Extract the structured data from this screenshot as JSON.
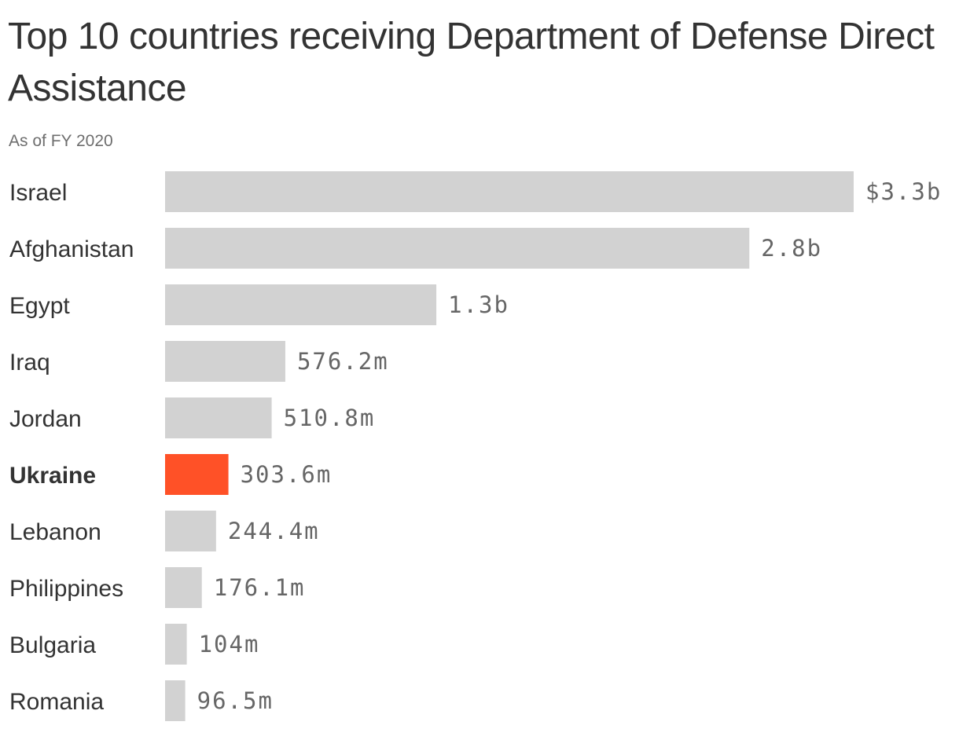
{
  "title": "Top 10 countries receiving Department of Defense Direct Assistance",
  "subtitle": "As of FY 2020",
  "chart_data": {
    "type": "bar",
    "orientation": "horizontal",
    "categories": [
      "Israel",
      "Afghanistan",
      "Egypt",
      "Iraq",
      "Jordan",
      "Ukraine",
      "Lebanon",
      "Philippines",
      "Bulgaria",
      "Romania"
    ],
    "values": [
      3300,
      2800,
      1300,
      576.2,
      510.8,
      303.6,
      244.4,
      176.1,
      104,
      96.5
    ],
    "value_labels": [
      "$3.3b",
      "2.8b",
      "1.3b",
      "576.2m",
      "510.8m",
      "303.6m",
      "244.4m",
      "176.1m",
      "104m",
      "96.5m"
    ],
    "highlight": "Ukraine",
    "colors": {
      "bar": "#d2d2d2",
      "highlight": "#ff5127"
    },
    "grid": false,
    "xlim": [
      0,
      3300
    ]
  }
}
